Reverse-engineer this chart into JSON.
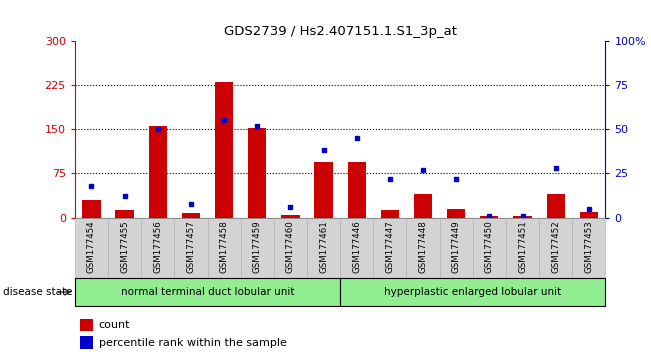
{
  "title": "GDS2739 / Hs2.407151.1.S1_3p_at",
  "samples": [
    "GSM177454",
    "GSM177455",
    "GSM177456",
    "GSM177457",
    "GSM177458",
    "GSM177459",
    "GSM177460",
    "GSM177461",
    "GSM177446",
    "GSM177447",
    "GSM177448",
    "GSM177449",
    "GSM177450",
    "GSM177451",
    "GSM177452",
    "GSM177453"
  ],
  "counts": [
    30,
    13,
    155,
    8,
    230,
    152,
    5,
    95,
    95,
    13,
    40,
    14,
    3,
    3,
    40,
    10
  ],
  "percentiles": [
    18,
    12,
    50,
    8,
    55,
    52,
    6,
    38,
    45,
    22,
    27,
    22,
    1,
    1,
    28,
    5
  ],
  "group1_label": "normal terminal duct lobular unit",
  "group1_count": 8,
  "group2_label": "hyperplastic enlarged lobular unit",
  "group2_count": 8,
  "disease_state_label": "disease state",
  "ylim_left": [
    0,
    300
  ],
  "ylim_right": [
    0,
    100
  ],
  "yticks_left": [
    0,
    75,
    150,
    225,
    300
  ],
  "yticks_right": [
    0,
    25,
    50,
    75,
    100
  ],
  "bar_color": "#cc0000",
  "dot_color": "#0000cc",
  "bg_color": "#ffffff",
  "plot_bg_color": "#ffffff",
  "left_axis_color": "#cc0000",
  "right_axis_color": "#0000cc",
  "legend_count_label": "count",
  "legend_pct_label": "percentile rank within the sample",
  "group1_bg": "#90ee90",
  "group2_bg": "#90ee90",
  "tick_label_bg": "#d3d3d3",
  "hgrid_vals": [
    75,
    150,
    225
  ]
}
